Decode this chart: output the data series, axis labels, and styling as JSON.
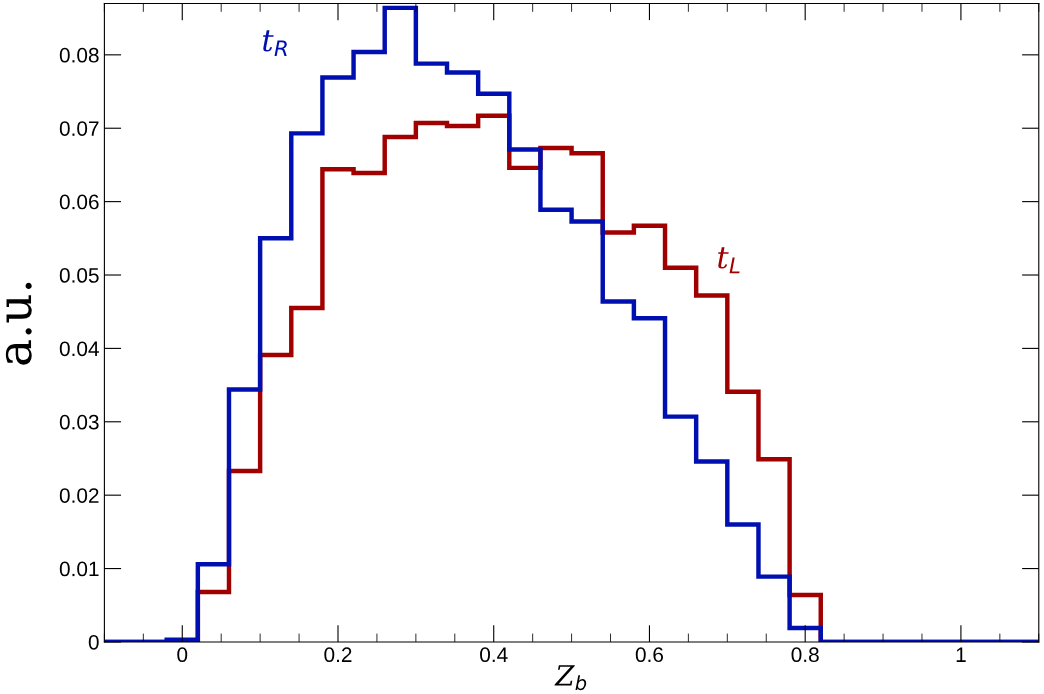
{
  "chart_data": {
    "type": "histogram",
    "xlabel": "Z$_{b}$",
    "ylabel": "a.u.",
    "bins": [
      -0.1,
      -0.06,
      -0.02,
      0.02,
      0.06,
      0.1,
      0.14,
      0.18,
      0.22,
      0.26,
      0.3,
      0.34,
      0.38,
      0.42,
      0.46,
      0.5,
      0.54,
      0.58,
      0.62,
      0.66,
      0.7,
      0.74,
      0.78,
      0.82,
      0.86,
      0.9,
      0.94,
      0.98,
      1.02,
      1.06,
      1.1
    ],
    "series": [
      {
        "name": "t$_{L}$",
        "color": "#a00000",
        "values": [
          0,
          0,
          0,
          0.0068,
          0.0233,
          0.0391,
          0.0455,
          0.0644,
          0.0639,
          0.0688,
          0.0707,
          0.0703,
          0.0717,
          0.0646,
          0.0673,
          0.0666,
          0.0558,
          0.0567,
          0.051,
          0.0472,
          0.0341,
          0.0249,
          0.0064,
          0,
          0,
          0,
          0,
          0,
          0,
          0
        ]
      },
      {
        "name": "t$_{R}$",
        "color": "#0010b0",
        "values": [
          0,
          0,
          0.0003,
          0.0106,
          0.0344,
          0.055,
          0.0693,
          0.0769,
          0.0804,
          0.0864,
          0.0788,
          0.0776,
          0.0747,
          0.0671,
          0.0589,
          0.0573,
          0.0464,
          0.0441,
          0.0307,
          0.0246,
          0.016,
          0.0089,
          0.0019,
          0,
          0,
          0,
          0,
          0,
          0,
          0
        ]
      }
    ],
    "xlim": [
      -0.1,
      1.1
    ],
    "ylim": [
      0,
      0.087
    ],
    "xticks": [
      0,
      0.2,
      0.4,
      0.6,
      0.8,
      1
    ],
    "yticks": [
      0,
      0.01,
      0.02,
      0.03,
      0.04,
      0.05,
      0.06,
      0.07,
      0.08
    ],
    "grid": false
  }
}
